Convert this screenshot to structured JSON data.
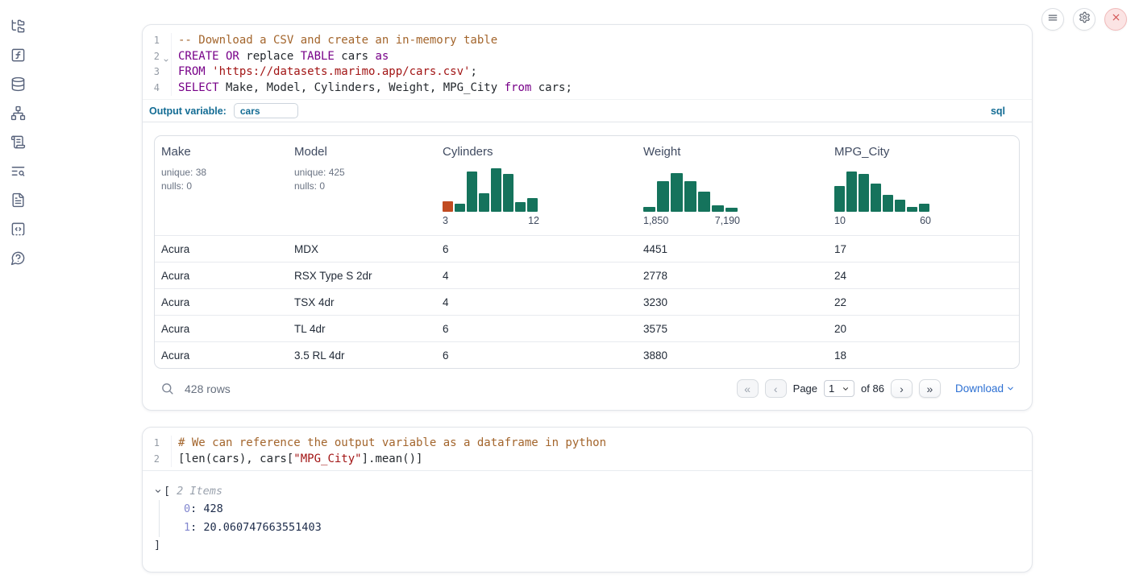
{
  "topbar": {
    "buttons": [
      {
        "name": "menu",
        "icon": "hamburger-icon"
      },
      {
        "name": "settings",
        "icon": "gear-icon"
      },
      {
        "name": "shutdown",
        "icon": "close-icon"
      }
    ]
  },
  "sidebar": {
    "icons": [
      "file-tree-icon",
      "function-square-icon",
      "database-icon",
      "dependency-graph-icon",
      "scroll-text-icon",
      "logs-search-icon",
      "document-icon",
      "snippets-icon",
      "help-icon"
    ]
  },
  "colors": {
    "accent_blue": "#136c94",
    "link_blue": "#2d70d3",
    "hist_teal": "#15735c",
    "hist_orange": "#c14b21",
    "keyword": "#770088",
    "string": "#a21515",
    "comment": "#a3652c"
  },
  "sql_cell": {
    "code": [
      {
        "num": "1",
        "fold": false,
        "tokens": [
          {
            "t": "-- Download a CSV and create an in-memory table",
            "c": "com"
          }
        ]
      },
      {
        "num": "2",
        "fold": true,
        "tokens": [
          {
            "t": "CREATE OR",
            "c": "kw"
          },
          {
            "t": " replace ",
            "c": "pl"
          },
          {
            "t": "TABLE",
            "c": "kw"
          },
          {
            "t": " cars ",
            "c": "pl"
          },
          {
            "t": "as",
            "c": "kw"
          }
        ]
      },
      {
        "num": "3",
        "fold": false,
        "tokens": [
          {
            "t": "FROM",
            "c": "kw"
          },
          {
            "t": " ",
            "c": "pl"
          },
          {
            "t": "'https://datasets.marimo.app/cars.csv'",
            "c": "str"
          },
          {
            "t": ";",
            "c": "pl"
          }
        ]
      },
      {
        "num": "4",
        "fold": false,
        "tokens": [
          {
            "t": "SELECT",
            "c": "kw"
          },
          {
            "t": " Make, Model, Cylinders, Weight, MPG_City ",
            "c": "pl"
          },
          {
            "t": "from",
            "c": "kw"
          },
          {
            "t": " cars;",
            "c": "pl"
          }
        ]
      }
    ],
    "output_variable": {
      "label": "Output variable:",
      "value": "cars"
    },
    "language_label": "sql"
  },
  "data_table": {
    "columns": [
      {
        "name": "Make",
        "stats": [
          "unique: 38",
          "nulls: 0"
        ]
      },
      {
        "name": "Model",
        "stats": [
          "unique: 425",
          "nulls: 0"
        ]
      },
      {
        "name": "Cylinders",
        "histogram": {
          "type": "histogram",
          "min_label": "3",
          "max_label": "12",
          "bar_heights_pct": [
            23,
            18,
            89,
            41,
            96,
            84,
            21,
            30
          ],
          "bar_colors": [
            "#c14b21",
            "#15735c",
            "#15735c",
            "#15735c",
            "#15735c",
            "#15735c",
            "#15735c",
            "#15735c"
          ]
        }
      },
      {
        "name": "Weight",
        "histogram": {
          "type": "histogram",
          "min_label": "1,850",
          "max_label": "7,190",
          "bar_heights_pct": [
            11,
            68,
            86,
            68,
            45,
            14,
            9
          ],
          "bar_colors": [
            "#15735c",
            "#15735c",
            "#15735c",
            "#15735c",
            "#15735c",
            "#15735c",
            "#15735c"
          ]
        }
      },
      {
        "name": "MPG_City",
        "histogram": {
          "type": "histogram",
          "min_label": "10",
          "max_label": "60",
          "bar_heights_pct": [
            57,
            89,
            84,
            63,
            38,
            27,
            11,
            18
          ],
          "bar_colors": [
            "#15735c",
            "#15735c",
            "#15735c",
            "#15735c",
            "#15735c",
            "#15735c",
            "#15735c",
            "#15735c"
          ]
        }
      }
    ],
    "rows": [
      [
        "Acura",
        "MDX",
        "6",
        "4451",
        "17"
      ],
      [
        "Acura",
        "RSX Type S 2dr",
        "4",
        "2778",
        "24"
      ],
      [
        "Acura",
        "TSX 4dr",
        "4",
        "3230",
        "22"
      ],
      [
        "Acura",
        "TL 4dr",
        "6",
        "3575",
        "20"
      ],
      [
        "Acura",
        "3.5 RL 4dr",
        "6",
        "3880",
        "18"
      ]
    ],
    "footer": {
      "row_count": "428 rows",
      "pagination": {
        "first": "«",
        "prev": "‹",
        "page_label": "Page",
        "page_value": "1",
        "total_label": "of 86",
        "next": "›",
        "last": "»"
      },
      "download_label": "Download"
    }
  },
  "python_cell": {
    "code": [
      {
        "num": "1",
        "fold": false,
        "tokens": [
          {
            "t": "# We can reference the output variable as a dataframe in python",
            "c": "com"
          }
        ]
      },
      {
        "num": "2",
        "fold": false,
        "tokens": [
          {
            "t": "[len(cars), cars[",
            "c": "pl"
          },
          {
            "t": "\"MPG_City\"",
            "c": "str"
          },
          {
            "t": "].mean()]",
            "c": "pl"
          }
        ]
      }
    ]
  },
  "python_output": {
    "open_bracket": "[",
    "items_label": "2 Items",
    "entries": [
      {
        "key": "0",
        "value": "428"
      },
      {
        "key": "1",
        "value": "20.060747663551403"
      }
    ],
    "close_bracket": "]"
  }
}
